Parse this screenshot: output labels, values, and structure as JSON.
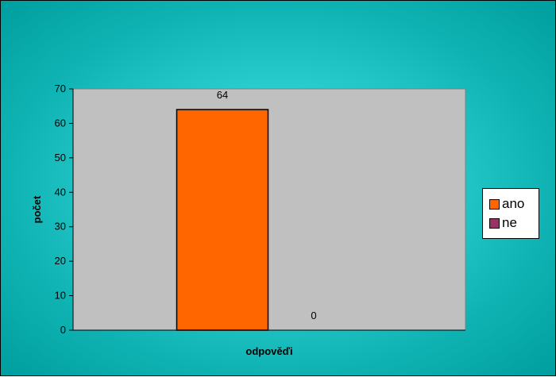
{
  "chart_data": {
    "type": "bar",
    "title": "",
    "xlabel": "odpověďi",
    "ylabel": "počet",
    "ylim": [
      0,
      70
    ],
    "yticks": [
      0,
      10,
      20,
      30,
      40,
      50,
      60,
      70
    ],
    "grid": false,
    "legend_position": "right",
    "series": [
      {
        "name": "ano",
        "value": 64,
        "data_label": "64",
        "color": "#ff6600"
      },
      {
        "name": "ne",
        "value": 0,
        "data_label": "0",
        "color": "#993366"
      }
    ],
    "colors": {
      "plot_background": "#c0c0c0",
      "chart_background": "#1dc3c3"
    }
  }
}
